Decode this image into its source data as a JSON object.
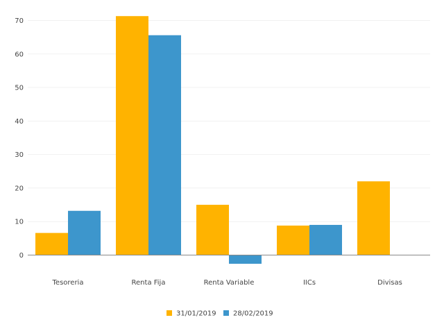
{
  "chart_data": {
    "type": "bar",
    "title": "",
    "xlabel": "",
    "ylabel": "",
    "categories": [
      "Tesoreria",
      "Renta Fija",
      "Renta Variable",
      "IICs",
      "Divisas"
    ],
    "series": [
      {
        "name": "31/01/2019",
        "color": "#FFB300",
        "values": [
          6.6,
          71.3,
          15.0,
          8.8,
          22.0
        ]
      },
      {
        "name": "28/02/2019",
        "color": "#3D96CC",
        "values": [
          13.2,
          65.6,
          -2.6,
          9.0,
          0
        ]
      }
    ],
    "ylim": [
      -2.8,
      73
    ],
    "yticks": [
      0,
      10,
      20,
      30,
      40,
      50,
      60,
      70
    ],
    "grid": true,
    "legend_position": "bottom-center"
  }
}
